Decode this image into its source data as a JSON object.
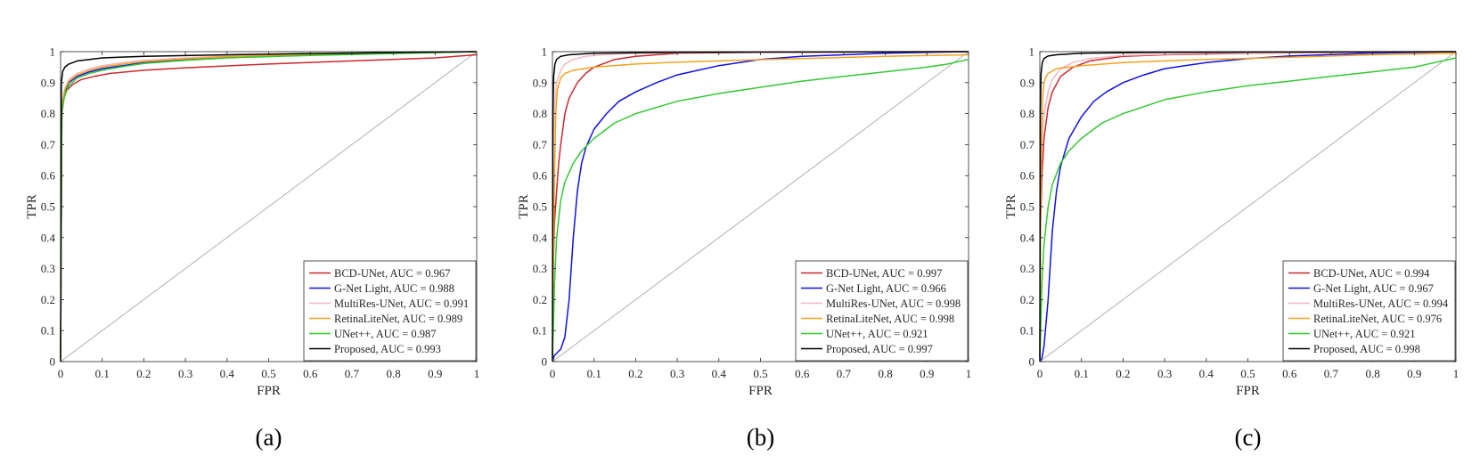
{
  "chart_data": [
    {
      "type": "line",
      "panel_label": "(a)",
      "xlabel": "FPR",
      "ylabel": "TPR",
      "xlim": [
        0,
        1
      ],
      "ylim": [
        0,
        1
      ],
      "xticks": [
        "0",
        "0.1",
        "0.2",
        "0.3",
        "0.4",
        "0.5",
        "0.6",
        "0.7",
        "0.8",
        "0.9",
        "1"
      ],
      "yticks": [
        "0",
        "0.1",
        "0.2",
        "0.3",
        "0.4",
        "0.5",
        "0.6",
        "0.7",
        "0.8",
        "0.9",
        "1"
      ],
      "grid": false,
      "legend_position": "bottom-right",
      "diagonal_reference": true,
      "series": [
        {
          "legend": "BCD-UNet, AUC = 0.967",
          "color": "#c8282d",
          "x": [
            0,
            0.003,
            0.008,
            0.015,
            0.03,
            0.05,
            0.08,
            0.12,
            0.2,
            0.3,
            0.5,
            0.7,
            0.9,
            1
          ],
          "y": [
            0,
            0.8,
            0.85,
            0.875,
            0.895,
            0.91,
            0.92,
            0.93,
            0.94,
            0.948,
            0.96,
            0.97,
            0.98,
            0.99
          ]
        },
        {
          "legend": "G-Net Light, AUC = 0.988",
          "color": "#1010e6",
          "x": [
            0,
            0.003,
            0.01,
            0.02,
            0.04,
            0.07,
            0.1,
            0.15,
            0.2,
            0.3,
            0.4,
            0.6,
            0.8,
            1
          ],
          "y": [
            0,
            0.82,
            0.87,
            0.9,
            0.92,
            0.935,
            0.945,
            0.955,
            0.965,
            0.975,
            0.982,
            0.99,
            0.995,
            1
          ]
        },
        {
          "legend": "MultiRes-UNet, AUC = 0.991",
          "color": "#f4b6c0",
          "x": [
            0,
            0.003,
            0.01,
            0.02,
            0.04,
            0.07,
            0.1,
            0.15,
            0.2,
            0.3,
            0.4,
            0.6,
            0.8,
            1
          ],
          "y": [
            0,
            0.83,
            0.88,
            0.91,
            0.93,
            0.945,
            0.955,
            0.965,
            0.972,
            0.98,
            0.986,
            0.992,
            0.996,
            1
          ]
        },
        {
          "legend": "RetinaLiteNet, AUC = 0.989",
          "color": "#f2a21e",
          "x": [
            0,
            0.003,
            0.01,
            0.02,
            0.04,
            0.07,
            0.1,
            0.15,
            0.2,
            0.3,
            0.4,
            0.6,
            0.8,
            1
          ],
          "y": [
            0,
            0.82,
            0.875,
            0.905,
            0.925,
            0.94,
            0.95,
            0.96,
            0.968,
            0.977,
            0.984,
            0.99,
            0.995,
            1
          ]
        },
        {
          "legend": "UNet++, AUC = 0.987",
          "color": "#32c832",
          "x": [
            0,
            0.003,
            0.01,
            0.02,
            0.04,
            0.07,
            0.1,
            0.15,
            0.2,
            0.3,
            0.4,
            0.6,
            0.8,
            1
          ],
          "y": [
            0,
            0.81,
            0.86,
            0.89,
            0.915,
            0.93,
            0.94,
            0.952,
            0.962,
            0.972,
            0.98,
            0.988,
            0.994,
            1
          ]
        },
        {
          "legend": "Proposed, AUC = 0.993",
          "color": "#000000",
          "x": [
            0,
            0.002,
            0.005,
            0.01,
            0.02,
            0.04,
            0.07,
            0.1,
            0.2,
            0.4,
            0.6,
            0.8,
            1
          ],
          "y": [
            0,
            0.9,
            0.935,
            0.95,
            0.96,
            0.97,
            0.975,
            0.98,
            0.985,
            0.99,
            0.994,
            0.997,
            1
          ]
        }
      ]
    },
    {
      "type": "line",
      "panel_label": "(b)",
      "xlabel": "FPR",
      "ylabel": "TPR",
      "xlim": [
        0,
        1
      ],
      "ylim": [
        0,
        1
      ],
      "xticks": [
        "0",
        "0.1",
        "0.2",
        "0.3",
        "0.4",
        "0.5",
        "0.6",
        "0.7",
        "0.8",
        "0.9",
        "1"
      ],
      "yticks": [
        "0",
        "0.1",
        "0.2",
        "0.3",
        "0.4",
        "0.5",
        "0.6",
        "0.7",
        "0.8",
        "0.9",
        "1"
      ],
      "grid": false,
      "legend_position": "bottom-right",
      "diagonal_reference": true,
      "series": [
        {
          "legend": "BCD-UNet, AUC = 0.997",
          "color": "#c8282d",
          "x": [
            0,
            0.002,
            0.005,
            0.01,
            0.015,
            0.02,
            0.03,
            0.04,
            0.06,
            0.08,
            0.1,
            0.15,
            0.2,
            0.3,
            0.5,
            1
          ],
          "y": [
            0,
            0.3,
            0.45,
            0.55,
            0.64,
            0.7,
            0.8,
            0.85,
            0.9,
            0.93,
            0.95,
            0.975,
            0.985,
            0.995,
            0.998,
            1
          ]
        },
        {
          "legend": "G-Net Light, AUC = 0.966",
          "color": "#1010e6",
          "x": [
            0,
            0.005,
            0.02,
            0.03,
            0.04,
            0.05,
            0.06,
            0.07,
            0.08,
            0.1,
            0.13,
            0.16,
            0.2,
            0.25,
            0.3,
            0.4,
            0.5,
            0.6,
            0.8,
            1
          ],
          "y": [
            0,
            0.02,
            0.04,
            0.08,
            0.2,
            0.4,
            0.55,
            0.64,
            0.69,
            0.75,
            0.8,
            0.84,
            0.87,
            0.9,
            0.925,
            0.955,
            0.975,
            0.985,
            0.995,
            1
          ]
        },
        {
          "legend": "MultiRes-UNet, AUC = 0.998",
          "color": "#f4b6c0",
          "x": [
            0,
            0.002,
            0.005,
            0.01,
            0.02,
            0.03,
            0.05,
            0.08,
            0.12,
            0.2,
            0.4,
            1
          ],
          "y": [
            0,
            0.7,
            0.82,
            0.9,
            0.94,
            0.96,
            0.975,
            0.985,
            0.99,
            0.995,
            0.998,
            1
          ]
        },
        {
          "legend": "RetinaLiteNet, AUC = 0.998",
          "color": "#f2a21e",
          "x": [
            0,
            0.002,
            0.005,
            0.008,
            0.012,
            0.02,
            0.03,
            0.05,
            0.1,
            0.2,
            0.3,
            0.4,
            0.5,
            0.6,
            0.8,
            1
          ],
          "y": [
            0,
            0.3,
            0.6,
            0.8,
            0.88,
            0.915,
            0.93,
            0.94,
            0.95,
            0.96,
            0.966,
            0.97,
            0.974,
            0.978,
            0.985,
            0.99
          ]
        },
        {
          "legend": "UNet++, AUC = 0.921",
          "color": "#32c832",
          "x": [
            0,
            0.005,
            0.01,
            0.02,
            0.03,
            0.05,
            0.07,
            0.1,
            0.15,
            0.2,
            0.3,
            0.4,
            0.5,
            0.6,
            0.7,
            0.8,
            0.9,
            0.95,
            1
          ],
          "y": [
            0,
            0.25,
            0.4,
            0.52,
            0.58,
            0.64,
            0.68,
            0.72,
            0.77,
            0.8,
            0.84,
            0.865,
            0.885,
            0.905,
            0.92,
            0.935,
            0.95,
            0.96,
            0.975
          ]
        },
        {
          "legend": "Proposed, AUC = 0.997",
          "color": "#000000",
          "x": [
            0,
            0.001,
            0.003,
            0.006,
            0.01,
            0.02,
            0.04,
            0.1,
            0.3,
            1
          ],
          "y": [
            0,
            0.8,
            0.92,
            0.96,
            0.975,
            0.985,
            0.99,
            0.995,
            0.998,
            1
          ]
        }
      ]
    },
    {
      "type": "line",
      "panel_label": "(c)",
      "xlabel": "FPR",
      "ylabel": "TPR",
      "xlim": [
        0,
        1
      ],
      "ylim": [
        0,
        1
      ],
      "xticks": [
        "0",
        "0.1",
        "0.2",
        "0.3",
        "0.4",
        "0.5",
        "0.6",
        "0.7",
        "0.8",
        "0.9",
        "1"
      ],
      "yticks": [
        "0",
        "0.1",
        "0.2",
        "0.3",
        "0.4",
        "0.5",
        "0.6",
        "0.7",
        "0.8",
        "0.9",
        "1"
      ],
      "grid": false,
      "legend_position": "bottom-right",
      "diagonal_reference": true,
      "series": [
        {
          "legend": "BCD-UNet, AUC = 0.994",
          "color": "#c8282d",
          "x": [
            0,
            0.002,
            0.005,
            0.01,
            0.02,
            0.03,
            0.05,
            0.08,
            0.12,
            0.2,
            0.3,
            0.5,
            1
          ],
          "y": [
            0,
            0.45,
            0.6,
            0.72,
            0.82,
            0.87,
            0.92,
            0.95,
            0.97,
            0.985,
            0.99,
            0.995,
            1
          ]
        },
        {
          "legend": "G-Net Light, AUC = 0.967",
          "color": "#1010e6",
          "x": [
            0,
            0.005,
            0.01,
            0.02,
            0.03,
            0.04,
            0.05,
            0.07,
            0.1,
            0.13,
            0.16,
            0.2,
            0.25,
            0.3,
            0.4,
            0.5,
            0.6,
            0.8,
            1
          ],
          "y": [
            0,
            0.01,
            0.05,
            0.2,
            0.42,
            0.55,
            0.63,
            0.72,
            0.79,
            0.84,
            0.87,
            0.9,
            0.925,
            0.945,
            0.965,
            0.978,
            0.986,
            0.995,
            1
          ]
        },
        {
          "legend": "MultiRes-UNet, AUC = 0.994",
          "color": "#f4b6c0",
          "x": [
            0,
            0.002,
            0.005,
            0.01,
            0.02,
            0.03,
            0.05,
            0.08,
            0.12,
            0.2,
            0.4,
            1
          ],
          "y": [
            0,
            0.55,
            0.7,
            0.8,
            0.87,
            0.91,
            0.945,
            0.965,
            0.978,
            0.988,
            0.995,
            1
          ]
        },
        {
          "legend": "RetinaLiteNet, AUC = 0.976",
          "color": "#f2a21e",
          "x": [
            0,
            0.002,
            0.004,
            0.007,
            0.01,
            0.015,
            0.02,
            0.04,
            0.1,
            0.2,
            0.3,
            0.4,
            0.6,
            0.8,
            1
          ],
          "y": [
            0,
            0.5,
            0.75,
            0.86,
            0.9,
            0.92,
            0.93,
            0.945,
            0.955,
            0.965,
            0.97,
            0.975,
            0.982,
            0.99,
            0.995
          ]
        },
        {
          "legend": "UNet++, AUC = 0.921",
          "color": "#32c832",
          "x": [
            0,
            0.005,
            0.01,
            0.02,
            0.03,
            0.05,
            0.07,
            0.1,
            0.15,
            0.2,
            0.3,
            0.4,
            0.5,
            0.6,
            0.7,
            0.8,
            0.9,
            0.95,
            1
          ],
          "y": [
            0,
            0.25,
            0.38,
            0.5,
            0.57,
            0.64,
            0.68,
            0.72,
            0.77,
            0.8,
            0.845,
            0.87,
            0.89,
            0.905,
            0.92,
            0.935,
            0.95,
            0.965,
            0.98
          ]
        },
        {
          "legend": "Proposed, AUC = 0.998",
          "color": "#000000",
          "x": [
            0,
            0.001,
            0.003,
            0.006,
            0.01,
            0.02,
            0.04,
            0.1,
            0.3,
            1
          ],
          "y": [
            0,
            0.8,
            0.93,
            0.965,
            0.978,
            0.986,
            0.99,
            0.995,
            0.998,
            1
          ]
        }
      ]
    }
  ]
}
